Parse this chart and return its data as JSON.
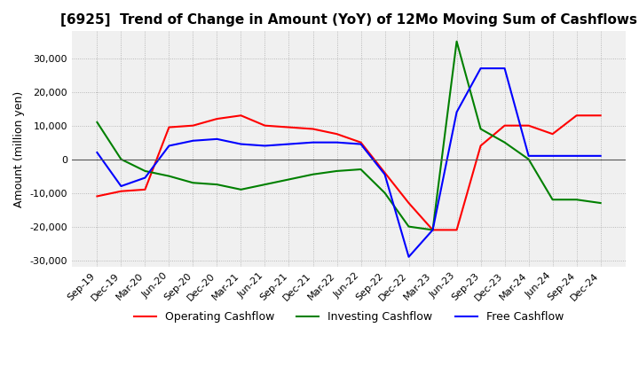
{
  "title": "[6925]  Trend of Change in Amount (YoY) of 12Mo Moving Sum of Cashflows",
  "ylabel": "Amount (million yen)",
  "ylim": [
    -32000,
    38000
  ],
  "yticks": [
    -30000,
    -20000,
    -10000,
    0,
    10000,
    20000,
    30000
  ],
  "background_color": "#ffffff",
  "plot_bg_color": "#f0f0f0",
  "grid_color": "#aaaaaa",
  "x_labels": [
    "Sep-19",
    "Dec-19",
    "Mar-20",
    "Jun-20",
    "Sep-20",
    "Dec-20",
    "Mar-21",
    "Jun-21",
    "Sep-21",
    "Dec-21",
    "Mar-22",
    "Jun-22",
    "Sep-22",
    "Dec-22",
    "Mar-23",
    "Jun-23",
    "Sep-23",
    "Dec-23",
    "Mar-24",
    "Jun-24",
    "Sep-24",
    "Dec-24"
  ],
  "operating": [
    -11000,
    -9500,
    -9000,
    9500,
    10000,
    12000,
    13000,
    10000,
    9500,
    9000,
    7500,
    5000,
    -4000,
    -13000,
    -21000,
    -21000,
    4000,
    10000,
    10000,
    7500,
    13000,
    13000
  ],
  "investing": [
    11000,
    0,
    -3500,
    -5000,
    -7000,
    -7500,
    -9000,
    -7500,
    -6000,
    -4500,
    -3500,
    -3000,
    -10000,
    -20000,
    -21000,
    35000,
    9000,
    5000,
    0,
    -12000,
    -12000,
    -13000
  ],
  "free": [
    2000,
    -8000,
    -5500,
    4000,
    5500,
    6000,
    4500,
    4000,
    4500,
    5000,
    5000,
    4500,
    -4500,
    -29000,
    -21000,
    14000,
    27000,
    27000,
    1000,
    1000,
    1000,
    1000
  ],
  "line_colors": {
    "operating": "#ff0000",
    "investing": "#008000",
    "free": "#0000ff"
  },
  "legend_labels": [
    "Operating Cashflow",
    "Investing Cashflow",
    "Free Cashflow"
  ],
  "title_fontsize": 11,
  "tick_fontsize": 8,
  "ylabel_fontsize": 9
}
